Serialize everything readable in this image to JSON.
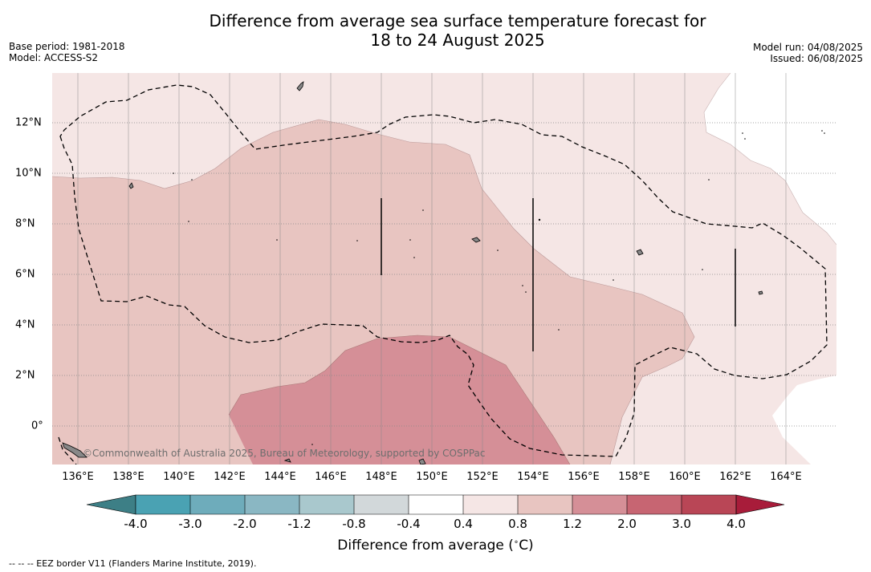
{
  "title": {
    "line1": "Difference from average sea surface temperature forecast for",
    "line2": "18 to 24 August 2025"
  },
  "meta_left": {
    "base_period": "Base period: 1981-2018",
    "model": "Model: ACCESS-S2"
  },
  "meta_right": {
    "model_run": "Model run: 04/08/2025",
    "issued": "Issued: 06/08/2025"
  },
  "map": {
    "lon_ticks": [
      "136°E",
      "138°E",
      "140°E",
      "142°E",
      "144°E",
      "146°E",
      "148°E",
      "150°E",
      "152°E",
      "154°E",
      "156°E",
      "158°E",
      "160°E",
      "162°E",
      "164°E"
    ],
    "lat_ticks": [
      "12°N",
      "10°N",
      "8°N",
      "6°N",
      "4°N",
      "2°N",
      "0°"
    ],
    "credit": "©Commonwealth of Australia 2025, Bureau of Meteorology, supported by COSPPac"
  },
  "colorbar": {
    "ticks": [
      "-4.0",
      "-3.0",
      "-2.0",
      "-1.2",
      "-0.8",
      "-0.4",
      "0.4",
      "0.8",
      "1.2",
      "2.0",
      "3.0",
      "4.0"
    ],
    "colors": {
      "under": "#3d7f86",
      "bins": [
        "#4aa2b3",
        "#6eacbb",
        "#8ab7c3",
        "#a9c8cd",
        "#d2d8da",
        "#ffffff",
        "#f5e6e5",
        "#e8c5c1",
        "#d58f97",
        "#c76572",
        "#b94656"
      ],
      "over": "#a81c3a"
    },
    "label": "Difference from average (",
    "degree": "∘",
    "label_end": "C)"
  },
  "footnote": "--  --  -- EEZ border V11 (Flanders Marine Institute, 2019)."
}
